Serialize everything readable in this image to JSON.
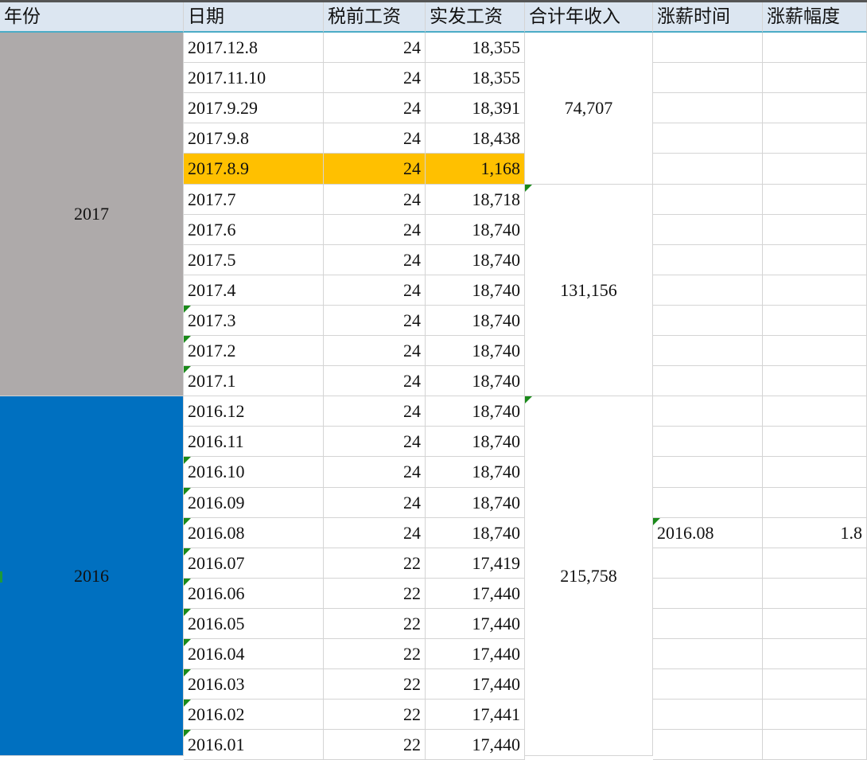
{
  "headers": [
    "年份",
    "日期",
    "税前工资",
    "实发工资",
    "合计年收入",
    "涨薪时间",
    "涨薪幅度"
  ],
  "year_groups": [
    {
      "label": "2017",
      "color": "#aeaaaa"
    },
    {
      "label": "2016",
      "color": "#0070c0"
    }
  ],
  "rows": [
    {
      "date": "2017.12.8",
      "pretax": "24",
      "net": "18,355",
      "tri": false
    },
    {
      "date": "2017.11.10",
      "pretax": "24",
      "net": "18,355",
      "tri": false
    },
    {
      "date": "2017.9.29",
      "pretax": "24",
      "net": "18,391",
      "tri": false
    },
    {
      "date": "2017.9.8",
      "pretax": "24",
      "net": "18,438",
      "tri": false
    },
    {
      "date": "2017.8.9",
      "pretax": "24",
      "net": "1,168",
      "tri": false,
      "highlight": "#ffc000"
    },
    {
      "date": "2017.7",
      "pretax": "24",
      "net": "18,718",
      "tri": false
    },
    {
      "date": "2017.6",
      "pretax": "24",
      "net": "18,740",
      "tri": false
    },
    {
      "date": "2017.5",
      "pretax": "24",
      "net": "18,740",
      "tri": false
    },
    {
      "date": "2017.4",
      "pretax": "24",
      "net": "18,740",
      "tri": false
    },
    {
      "date": "2017.3",
      "pretax": "24",
      "net": "18,740",
      "tri": true
    },
    {
      "date": "2017.2",
      "pretax": "24",
      "net": "18,740",
      "tri": true
    },
    {
      "date": "2017.1",
      "pretax": "24",
      "net": "18,740",
      "tri": true
    },
    {
      "date": "2016.12",
      "pretax": "24",
      "net": "18,740",
      "tri": false
    },
    {
      "date": "2016.11",
      "pretax": "24",
      "net": "18,740",
      "tri": false
    },
    {
      "date": "2016.10",
      "pretax": "24",
      "net": "18,740",
      "tri": true
    },
    {
      "date": "2016.09",
      "pretax": "24",
      "net": "18,740",
      "tri": true
    },
    {
      "date": "2016.08",
      "pretax": "24",
      "net": "18,740",
      "tri": true,
      "raise_time": "2016.08",
      "raise_amount": "1.8"
    },
    {
      "date": "2016.07",
      "pretax": "22",
      "net": "17,419",
      "tri": true
    },
    {
      "date": "2016.06",
      "pretax": "22",
      "net": "17,440",
      "tri": true
    },
    {
      "date": "2016.05",
      "pretax": "22",
      "net": "17,440",
      "tri": true
    },
    {
      "date": "2016.04",
      "pretax": "22",
      "net": "17,440",
      "tri": true
    },
    {
      "date": "2016.03",
      "pretax": "22",
      "net": "17,440",
      "tri": true
    },
    {
      "date": "2016.02",
      "pretax": "22",
      "net": "17,441",
      "tri": true
    },
    {
      "date": "2016.01",
      "pretax": "22",
      "net": "17,440",
      "tri": true
    }
  ],
  "totals": [
    "74,707",
    "131,156",
    "215,758"
  ],
  "colors": {
    "header_bg": "#dce6f1",
    "grid": "#d4d4d4",
    "comment_triangle": "#1a8a1a"
  }
}
